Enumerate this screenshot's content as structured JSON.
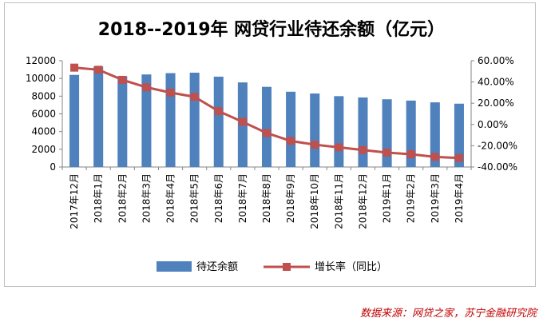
{
  "source": "数据来源：网贷之家，苏宁金融研究院",
  "chart_data": {
    "type": "bar+line",
    "title": "2018--2019年 网贷行业待还余额（亿元）",
    "categories": [
      "2017年12月",
      "2018年1月",
      "2018年2月",
      "2018年3月",
      "2018年4月",
      "2018年5月",
      "2018年6月",
      "2018年7月",
      "2018年8月",
      "2018年9月",
      "2018年10月",
      "2018年11月",
      "2018年12月",
      "2019年1月",
      "2019年2月",
      "2019年3月",
      "2019年4月"
    ],
    "series": [
      {
        "name": "待还余额",
        "type": "bar",
        "axis": "left",
        "color": "#4f81bd",
        "values": [
          10400,
          11350,
          10250,
          10450,
          10600,
          10650,
          10200,
          9550,
          9050,
          8500,
          8300,
          8000,
          7850,
          7650,
          7500,
          7300,
          7150
        ]
      },
      {
        "name": "增长率（同比）",
        "type": "line",
        "axis": "right",
        "color": "#c0504d",
        "values": [
          53.5,
          51.5,
          42,
          35,
          30,
          26,
          12.5,
          2.5,
          -8,
          -15.5,
          -19,
          -21.5,
          -24,
          -26.5,
          -28,
          -30.5,
          -31.5
        ]
      }
    ],
    "y_left": {
      "min": 0,
      "max": 12000,
      "step": 2000,
      "tick_labels": [
        "0",
        "2000",
        "4000",
        "6000",
        "8000",
        "10000",
        "12000"
      ]
    },
    "y_right": {
      "min": -40,
      "max": 60,
      "step": 20,
      "tick_labels": [
        "-40.00%",
        "-20.00%",
        "0.00%",
        "20.00%",
        "40.00%",
        "60.00%"
      ]
    },
    "grid": false,
    "legend_position": "bottom"
  }
}
